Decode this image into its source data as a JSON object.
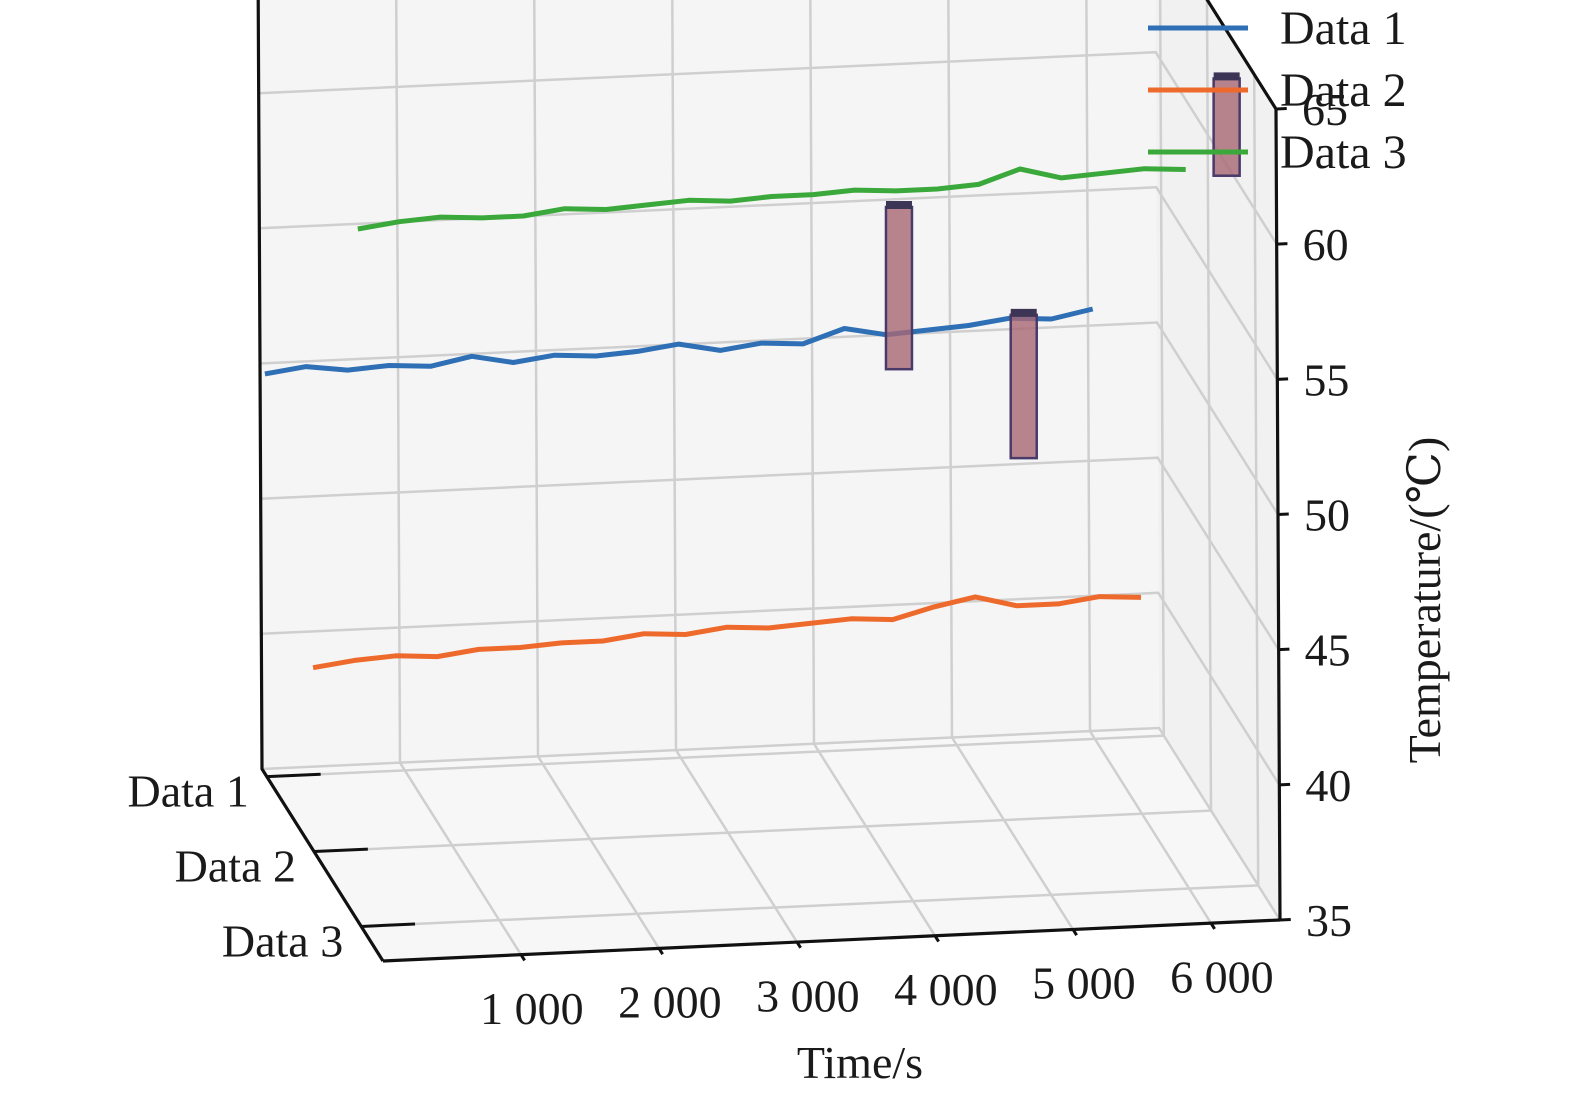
{
  "chart_data": {
    "type": "line",
    "subtype": "3d-line",
    "title": "",
    "xlabel": "Time/s",
    "ylabel": "",
    "zlabel": "Temperature/(℃)",
    "x_ticks": [
      "1 000",
      "2 000",
      "3 000",
      "4 000",
      "5 000",
      "6 000"
    ],
    "y_categories": [
      "Data 1",
      "Data 2",
      "Data 3"
    ],
    "z_ticks": [
      "35",
      "40",
      "45",
      "50",
      "55",
      "60",
      "65"
    ],
    "xlim": [
      0,
      6500
    ],
    "zlim": [
      35,
      65
    ],
    "grid": true,
    "legend_position": "top-right",
    "series": [
      {
        "name": "Data 1",
        "color": "#2e6fb5",
        "x": [
          0,
          300,
          600,
          900,
          1200,
          1500,
          1800,
          2100,
          2400,
          2700,
          3000,
          3300,
          3600,
          3900,
          4200,
          4500,
          4800,
          5100,
          5400,
          5700,
          6000
        ],
        "values": [
          49.9,
          50.1,
          49.9,
          50.0,
          49.9,
          50.2,
          49.9,
          50.1,
          50.0,
          50.1,
          50.3,
          50.0,
          50.2,
          50.1,
          50.6,
          50.3,
          50.4,
          50.5,
          50.7,
          50.6,
          50.9
        ]
      },
      {
        "name": "Data 2",
        "color": "#ee6a2c",
        "x": [
          0,
          300,
          600,
          900,
          1200,
          1500,
          1800,
          2100,
          2400,
          2700,
          3000,
          3300,
          3600,
          3900,
          4200,
          4500,
          4800,
          5100,
          5400,
          5700,
          6000
        ],
        "values": [
          41.8,
          42.0,
          42.1,
          42.0,
          42.2,
          42.2,
          42.3,
          42.3,
          42.5,
          42.4,
          42.6,
          42.5,
          42.6,
          42.7,
          42.6,
          43.0,
          43.3,
          42.9,
          42.9,
          43.1,
          43.0
        ]
      },
      {
        "name": "Data 3",
        "color": "#3aa83a",
        "x": [
          0,
          300,
          600,
          900,
          1200,
          1500,
          1800,
          2100,
          2400,
          2700,
          3000,
          3300,
          3600,
          3900,
          4200,
          4500,
          4800,
          5100,
          5400,
          5700,
          6000
        ],
        "values": [
          60.8,
          61.0,
          61.1,
          61.0,
          61.0,
          61.2,
          61.1,
          61.2,
          61.3,
          61.2,
          61.3,
          61.3,
          61.4,
          61.3,
          61.3,
          61.4,
          61.9,
          61.5,
          61.6,
          61.7,
          61.6
        ]
      }
    ],
    "annotations": [
      {
        "series": "Data 1",
        "x": 4600,
        "z_range": [
          49.0,
          55.0
        ],
        "shape": "vertical-bar"
      },
      {
        "series": "Data 1",
        "x": 5500,
        "z_range": [
          45.5,
          50.8
        ],
        "shape": "vertical-bar"
      },
      {
        "series": "Data 3",
        "x": 6300,
        "z_range": [
          61.3,
          64.9
        ],
        "shape": "vertical-bar"
      }
    ]
  }
}
